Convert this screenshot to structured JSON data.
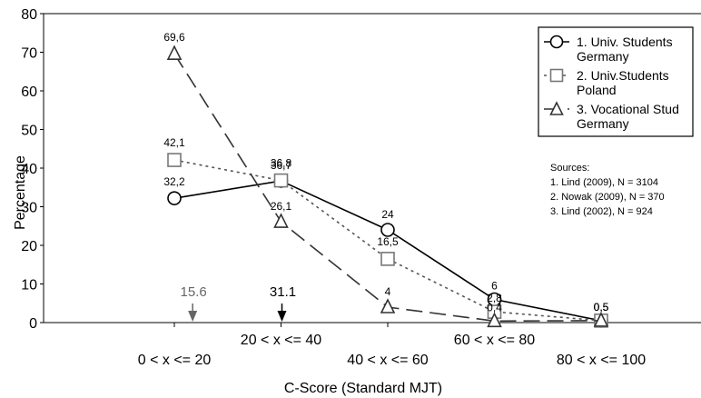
{
  "chart_data": {
    "type": "line",
    "xlabel": "C-Score (Standard MJT)",
    "ylabel": "Percentage",
    "ylim": [
      0,
      80
    ],
    "yticks": [
      0,
      10,
      20,
      30,
      40,
      50,
      60,
      70,
      80
    ],
    "categories": [
      "0 < x <= 20",
      "20 < x <= 40",
      "40 < x <= 60",
      "60 < x <= 80",
      "80 < x <= 100"
    ],
    "grid": false,
    "legend_position": "top-right",
    "series": [
      {
        "name": "1. Univ. Students Germany",
        "name_lines": [
          "1. Univ. Students",
          "Germany"
        ],
        "values": [
          32.2,
          36.7,
          24,
          6,
          0.5
        ],
        "labels": [
          "32,2",
          "36,7",
          "24",
          "6",
          "0,5"
        ],
        "marker": "circle",
        "dash": "solid",
        "color": "#000000",
        "marker_color": "#000000"
      },
      {
        "name": "2. Univ.Students Poland",
        "name_lines": [
          "2. Univ.Students",
          "Poland"
        ],
        "values": [
          42.1,
          36.8,
          16.5,
          2.8,
          0.5
        ],
        "labels": [
          "42,1",
          "36,8",
          "16,5",
          "2,8",
          "0,5"
        ],
        "marker": "square",
        "dash": "dotted",
        "color": "#555555",
        "marker_color": "#777777"
      },
      {
        "name": "3. Vocational Stud Germany",
        "name_lines": [
          "3. Vocational Stud",
          "Germany"
        ],
        "values": [
          69.6,
          26.1,
          4,
          0.4,
          0.5
        ],
        "labels": [
          "69,6",
          "26,1",
          "4",
          "0,4",
          "0,5"
        ],
        "marker": "triangle",
        "dash": "dashed",
        "color": "#333333",
        "marker_color": "#333333"
      }
    ],
    "arrows": [
      {
        "label": "15.6",
        "x_cat": 0.18,
        "color": "#666666"
      },
      {
        "label": "31.1",
        "x_cat": 1.0,
        "color": "#000000"
      }
    ],
    "sources": {
      "title": "Sources:",
      "items": [
        "1. Lind (2009), N = 3104",
        "2. Nowak (2009), N = 370",
        "3. Lind (2002), N = 924"
      ]
    }
  }
}
